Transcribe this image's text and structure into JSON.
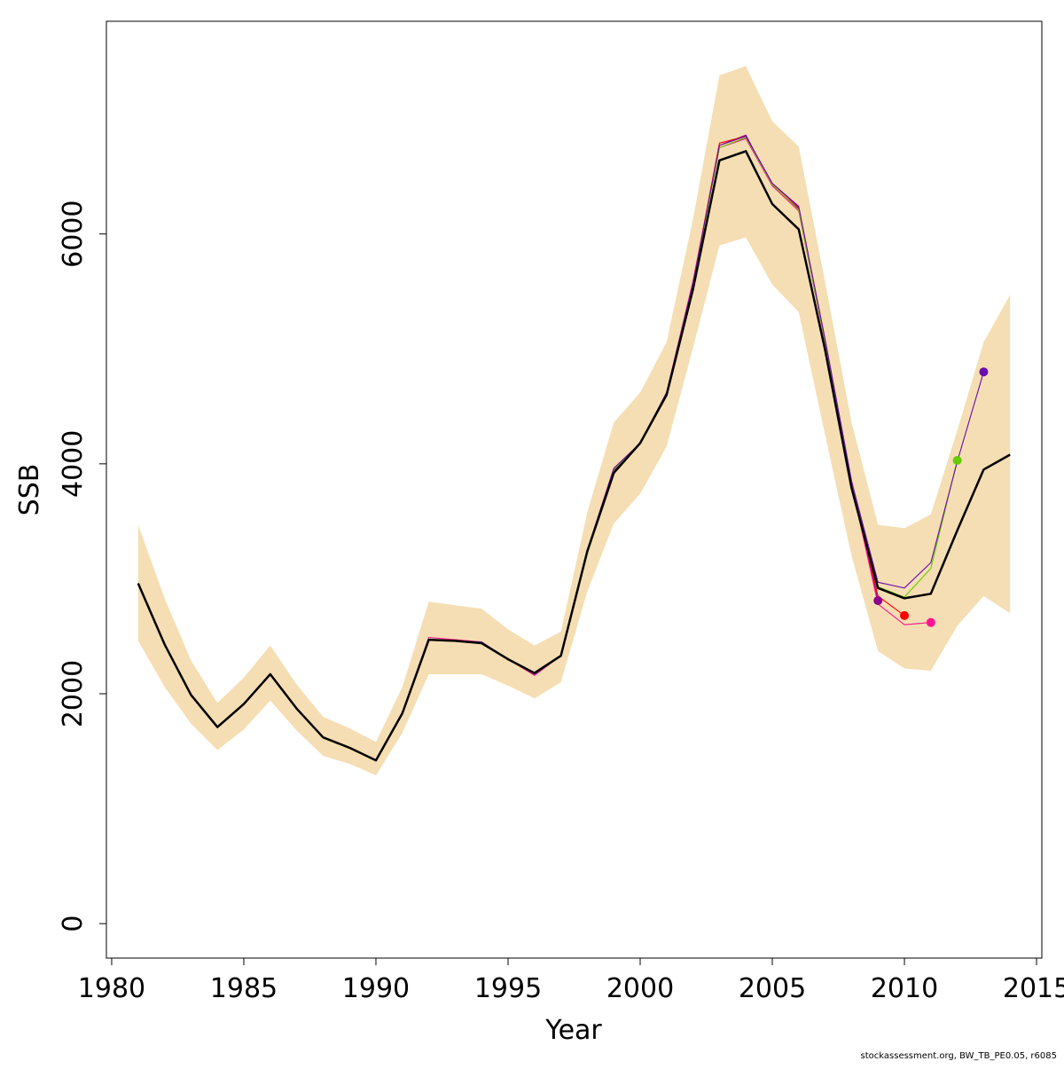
{
  "chart_data": {
    "type": "line",
    "xlabel": "Year",
    "ylabel": "SSB",
    "xlim": [
      1979.8,
      2015.2
    ],
    "ylim": [
      -300,
      7850
    ],
    "x_ticks": [
      1980,
      1985,
      1990,
      1995,
      2000,
      2005,
      2010,
      2015
    ],
    "y_ticks": [
      0,
      2000,
      4000,
      6000
    ],
    "grid": false,
    "legend": "none",
    "band": {
      "color": "#f5deb3",
      "x": [
        1981,
        1982,
        1983,
        1984,
        1985,
        1986,
        1987,
        1988,
        1989,
        1990,
        1991,
        1992,
        1993,
        1994,
        1995,
        1996,
        1997,
        1998,
        1999,
        2000,
        2001,
        2002,
        2003,
        2004,
        2005,
        2006,
        2007,
        2008,
        2009,
        2010,
        2011,
        2012,
        2013,
        2014
      ],
      "upper": [
        3470,
        2830,
        2290,
        1920,
        2140,
        2420,
        2080,
        1800,
        1700,
        1580,
        2060,
        2800,
        2770,
        2740,
        2560,
        2420,
        2540,
        3580,
        4360,
        4620,
        5060,
        6130,
        7380,
        7460,
        6980,
        6760,
        5580,
        4360,
        3470,
        3440,
        3560,
        4290,
        5060,
        5470
      ],
      "lower": [
        2460,
        2060,
        1740,
        1510,
        1690,
        1940,
        1680,
        1460,
        1390,
        1290,
        1660,
        2170,
        2170,
        2170,
        2070,
        1960,
        2100,
        2890,
        3480,
        3740,
        4150,
        5010,
        5900,
        5970,
        5560,
        5320,
        4250,
        3200,
        2370,
        2220,
        2200,
        2590,
        2850,
        2700
      ]
    },
    "series": [
      {
        "color": "#000000",
        "x": [
          1981,
          1982,
          1983,
          1984,
          1985,
          1986,
          1987,
          1988,
          1989,
          1990,
          1991,
          1992,
          1993,
          1994,
          1995,
          1996,
          1997,
          1998,
          1999,
          2000,
          2001,
          2002,
          2003,
          2004,
          2005,
          2006,
          2007,
          2008,
          2009,
          2010,
          2011,
          2012,
          2013,
          2014
        ],
        "y": [
          2960,
          2430,
          1990,
          1710,
          1910,
          2170,
          1870,
          1620,
          1530,
          1420,
          1830,
          2470,
          2460,
          2440,
          2300,
          2180,
          2330,
          3240,
          3920,
          4180,
          4600,
          5520,
          6640,
          6720,
          6260,
          6040,
          4990,
          3790,
          2920,
          2830,
          2870,
          3420,
          3950,
          4080
        ]
      },
      {
        "color": "#8b008b",
        "x": [
          1981,
          1982,
          1983,
          1984,
          1985,
          1986,
          1987,
          1988,
          1989,
          1990,
          1991,
          1992,
          1993,
          1994,
          1995,
          1996,
          1997,
          1998,
          1999,
          2000,
          2001,
          2002,
          2003,
          2004,
          2005,
          2006,
          2007,
          2008,
          2009
        ],
        "y": [
          2960,
          2430,
          1990,
          1710,
          1910,
          2170,
          1870,
          1620,
          1530,
          1420,
          1830,
          2470,
          2460,
          2440,
          2300,
          2170,
          2330,
          3240,
          3940,
          4180,
          4610,
          5560,
          6770,
          6860,
          6420,
          6220,
          5080,
          3850,
          2810
        ],
        "end_marker": true
      },
      {
        "color": "#ff0000",
        "x": [
          1981,
          1982,
          1983,
          1984,
          1985,
          1986,
          1987,
          1988,
          1989,
          1990,
          1991,
          1992,
          1993,
          1994,
          1995,
          1996,
          1997,
          1998,
          1999,
          2000,
          2001,
          2002,
          2003,
          2004,
          2005,
          2006,
          2007,
          2008,
          2009,
          2010
        ],
        "y": [
          2960,
          2430,
          1990,
          1710,
          1910,
          2170,
          1870,
          1620,
          1530,
          1420,
          1830,
          2470,
          2460,
          2440,
          2300,
          2170,
          2330,
          3240,
          3950,
          4180,
          4620,
          5580,
          6790,
          6850,
          6440,
          6230,
          5070,
          3830,
          2850,
          2680
        ],
        "end_marker": true
      },
      {
        "color": "#ff1493",
        "x": [
          1981,
          1982,
          1983,
          1984,
          1985,
          1986,
          1987,
          1988,
          1989,
          1990,
          1991,
          1992,
          1993,
          1994,
          1995,
          1996,
          1997,
          1998,
          1999,
          2000,
          2001,
          2002,
          2003,
          2004,
          2005,
          2006,
          2007,
          2008,
          2009,
          2010,
          2011
        ],
        "y": [
          2960,
          2430,
          1990,
          1710,
          1910,
          2170,
          1870,
          1620,
          1530,
          1420,
          1830,
          2490,
          2470,
          2450,
          2300,
          2160,
          2330,
          3250,
          3960,
          4180,
          4620,
          5590,
          6750,
          6830,
          6420,
          6200,
          5050,
          3820,
          2780,
          2600,
          2620
        ],
        "end_marker": true
      },
      {
        "color": "#66cc00",
        "x": [
          1981,
          1982,
          1983,
          1984,
          1985,
          1986,
          1987,
          1988,
          1989,
          1990,
          1991,
          1992,
          1993,
          1994,
          1995,
          1996,
          1997,
          1998,
          1999,
          2000,
          2001,
          2002,
          2003,
          2004,
          2005,
          2006,
          2007,
          2008,
          2009,
          2010,
          2011,
          2012
        ],
        "y": [
          2960,
          2430,
          1990,
          1710,
          1910,
          2170,
          1870,
          1620,
          1530,
          1420,
          1830,
          2470,
          2460,
          2440,
          2300,
          2170,
          2330,
          3250,
          3950,
          4180,
          4620,
          5560,
          6750,
          6840,
          6430,
          6210,
          5060,
          3830,
          2930,
          2840,
          3090,
          4030
        ],
        "end_marker": true
      },
      {
        "color": "#6a0dad",
        "x": [
          1981,
          1982,
          1983,
          1984,
          1985,
          1986,
          1987,
          1988,
          1989,
          1990,
          1991,
          1992,
          1993,
          1994,
          1995,
          1996,
          1997,
          1998,
          1999,
          2000,
          2001,
          2002,
          2003,
          2004,
          2005,
          2006,
          2007,
          2008,
          2009,
          2010,
          2011,
          2012,
          2013
        ],
        "y": [
          2960,
          2430,
          1990,
          1710,
          1910,
          2170,
          1870,
          1620,
          1530,
          1420,
          1830,
          2470,
          2460,
          2450,
          2300,
          2170,
          2330,
          3250,
          3960,
          4180,
          4620,
          5570,
          6770,
          6850,
          6440,
          6240,
          5080,
          3850,
          2970,
          2920,
          3140,
          4020,
          4800
        ],
        "end_marker": true
      }
    ]
  },
  "footnote": "stockassessment.org, BW_TB_PE0.05, r6085"
}
